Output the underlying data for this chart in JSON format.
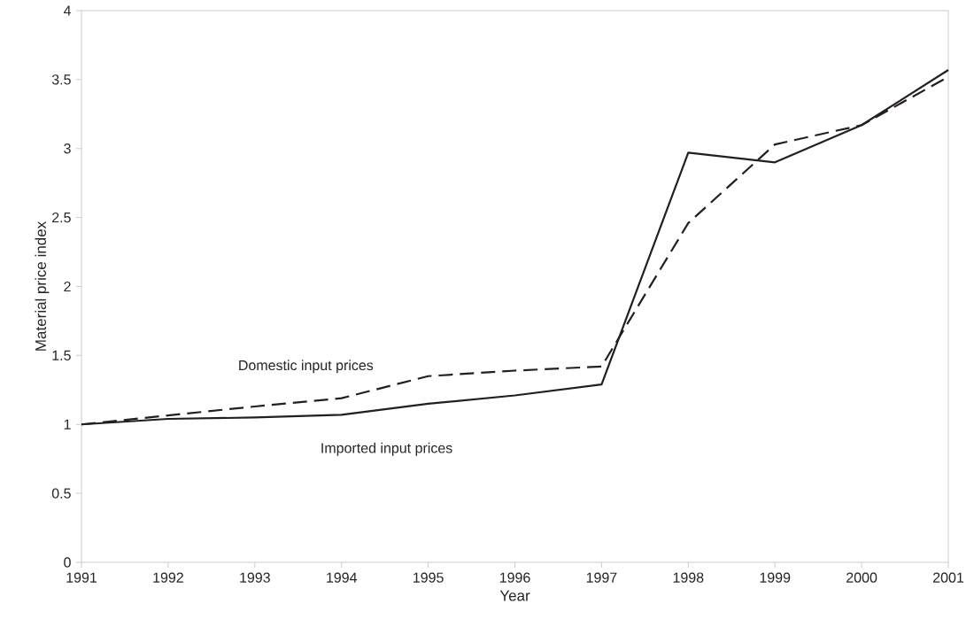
{
  "chart_data": {
    "type": "line",
    "xlabel": "Year",
    "ylabel": "Material price index",
    "x": [
      1991,
      1992,
      1993,
      1994,
      1995,
      1996,
      1997,
      1998,
      1999,
      2000,
      2001
    ],
    "series": [
      {
        "name": "Domestic input prices",
        "color": "#231f20",
        "line_style": "dashed",
        "values": [
          1.0,
          1.065,
          1.13,
          1.19,
          1.35,
          1.39,
          1.42,
          2.46,
          3.03,
          3.17,
          3.52
        ]
      },
      {
        "name": "Imported input prices",
        "color": "#231f20",
        "line_style": "solid",
        "values": [
          1.0,
          1.04,
          1.05,
          1.07,
          1.15,
          1.21,
          1.29,
          2.97,
          2.9,
          3.17,
          3.57
        ]
      }
    ],
    "xlim": [
      1991,
      2001
    ],
    "ylim": [
      0,
      4
    ],
    "xticks": [
      1991,
      1992,
      1993,
      1994,
      1995,
      1996,
      1997,
      1998,
      1999,
      2000,
      2001
    ],
    "yticks": [
      0,
      0.5,
      1,
      1.5,
      2,
      2.5,
      3,
      3.5,
      4
    ]
  }
}
